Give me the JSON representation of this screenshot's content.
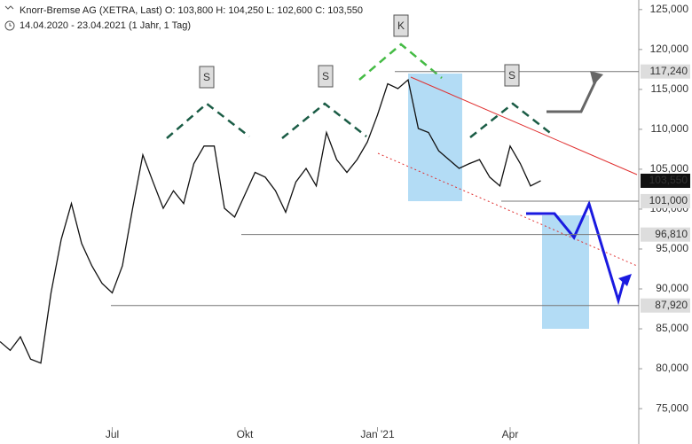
{
  "header": {
    "line1": "Knorr-Bremse AG (XETRA, Last)  O: 103,800  H: 104,250  L: 102,600  C: 103,550",
    "line2": "14.04.2020 - 23.04.2021  (1 Jahr, 1 Tag)"
  },
  "chart_data": {
    "type": "line",
    "color": "#111111",
    "categories": [
      null,
      null,
      null,
      null,
      null,
      null,
      null,
      null,
      null,
      null,
      null,
      "Jul",
      null,
      null,
      null,
      null,
      null,
      null,
      null,
      null,
      null,
      null,
      null,
      null,
      "Okt",
      null,
      null,
      null,
      null,
      null,
      null,
      null,
      null,
      null,
      null,
      null,
      null,
      "Jan '21",
      null,
      null,
      null,
      null,
      null,
      null,
      null,
      null,
      null,
      null,
      null,
      null,
      "Apr",
      null,
      null,
      null
    ],
    "series": [
      {
        "name": "Knorr-Bremse AG",
        "color": "#111111",
        "values": [
          83400,
          82300,
          84000,
          81200,
          80700,
          89500,
          96200,
          100700,
          95700,
          92900,
          90700,
          89500,
          92900,
          100100,
          106800,
          103400,
          100100,
          102300,
          100700,
          105700,
          107900,
          107900,
          100100,
          99000,
          101800,
          104600,
          104000,
          102300,
          99600,
          103400,
          105100,
          102900,
          109600,
          106200,
          104600,
          106200,
          108400,
          111800,
          115700,
          115100,
          116200,
          110100,
          109600,
          107300,
          106200,
          105100,
          105700,
          106200,
          104000,
          102900,
          107900,
          105700,
          102900,
          103550
        ]
      }
    ],
    "ylim": [
      72900,
      126200
    ],
    "yticks": [
      {
        "value": 75000,
        "label": "75,000"
      },
      {
        "value": 80000,
        "label": "80,000"
      },
      {
        "value": 85000,
        "label": "85,000"
      },
      {
        "value": 90000,
        "label": "90,000"
      },
      {
        "value": 95000,
        "label": "95,000"
      },
      {
        "value": 100000,
        "label": "100,000"
      },
      {
        "value": 105000,
        "label": "105,000"
      },
      {
        "value": 110000,
        "label": "110,000"
      },
      {
        "value": 115000,
        "label": "115,000"
      },
      {
        "value": 120000,
        "label": "120,000"
      },
      {
        "value": 125000,
        "label": "125,000"
      }
    ],
    "levels": [
      {
        "value": 117240,
        "label": "117,240"
      },
      {
        "value": 103550,
        "label": "103,550"
      },
      {
        "value": 101000,
        "label": "101,000"
      },
      {
        "value": 96810,
        "label": "96,810"
      },
      {
        "value": 87920,
        "label": "87,920"
      }
    ],
    "annotations": [
      "S",
      "S",
      "K",
      "S"
    ]
  }
}
